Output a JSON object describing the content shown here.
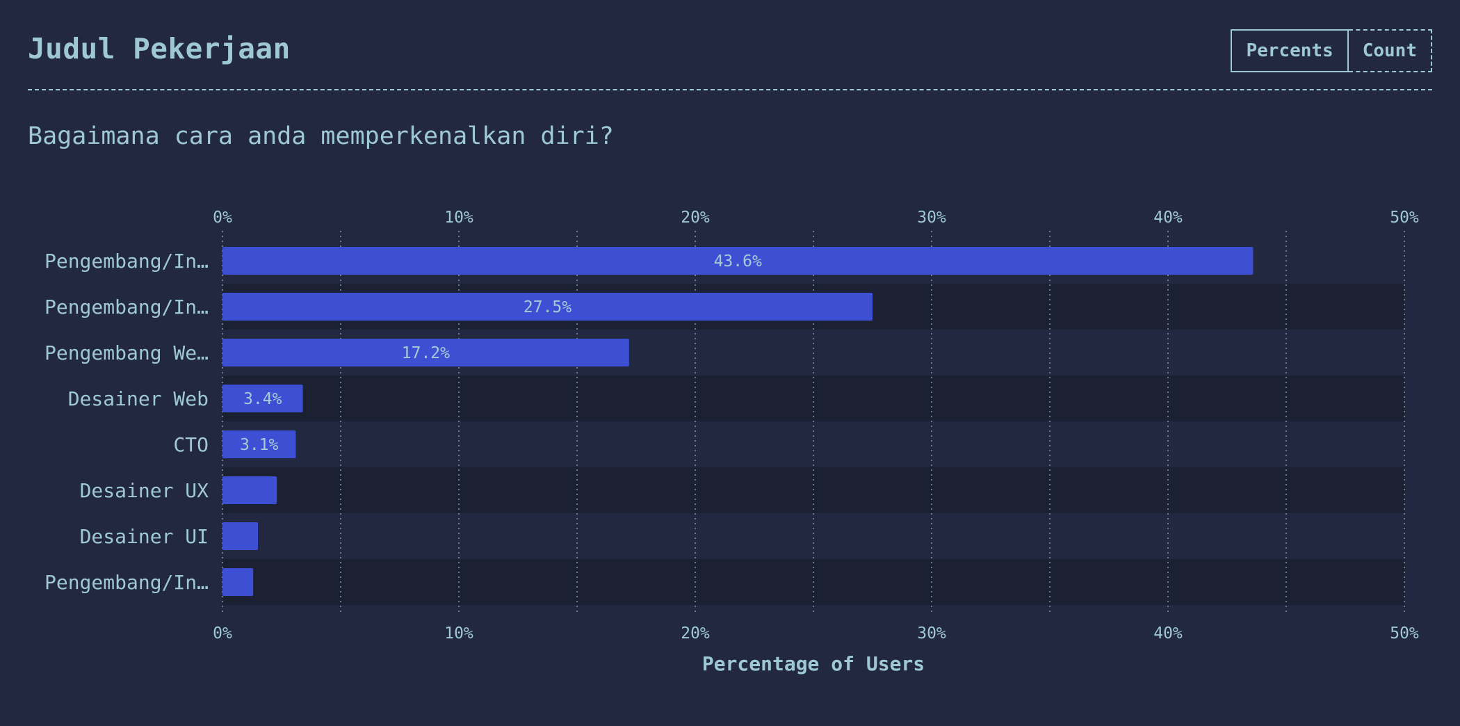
{
  "header": {
    "title": "Judul Pekerjaan",
    "toggle": {
      "percents_label": "Percents",
      "count_label": "Count",
      "active": "Percents"
    }
  },
  "question": "Bagaimana cara anda memperkenalkan diri?",
  "colors": {
    "background": "#232841",
    "row_alt": "#1c2033",
    "bar": "#3d50d4",
    "text": "#9fc9d2"
  },
  "chart_data": {
    "type": "bar",
    "orientation": "horizontal",
    "categories": [
      "Pengembang/In…",
      "Pengembang/In…",
      "Pengembang We…",
      "Desainer Web",
      "CTO",
      "Desainer UX",
      "Desainer UI",
      "Pengembang/In…"
    ],
    "values": [
      43.6,
      27.5,
      17.2,
      3.4,
      3.1,
      2.3,
      1.5,
      1.3
    ],
    "value_labels": [
      "43.6%",
      "27.5%",
      "17.2%",
      "3.4%",
      "3.1%",
      "",
      "",
      ""
    ],
    "xlim": [
      0,
      50
    ],
    "xticks": [
      0,
      10,
      20,
      30,
      40,
      50
    ],
    "xtick_labels": [
      "0%",
      "10%",
      "20%",
      "30%",
      "40%",
      "50%"
    ],
    "minor_gridlines": [
      5,
      15,
      25,
      35,
      45
    ],
    "xlabel": "Percentage of Users",
    "grid": true,
    "axis_labels_top_and_bottom": true
  }
}
